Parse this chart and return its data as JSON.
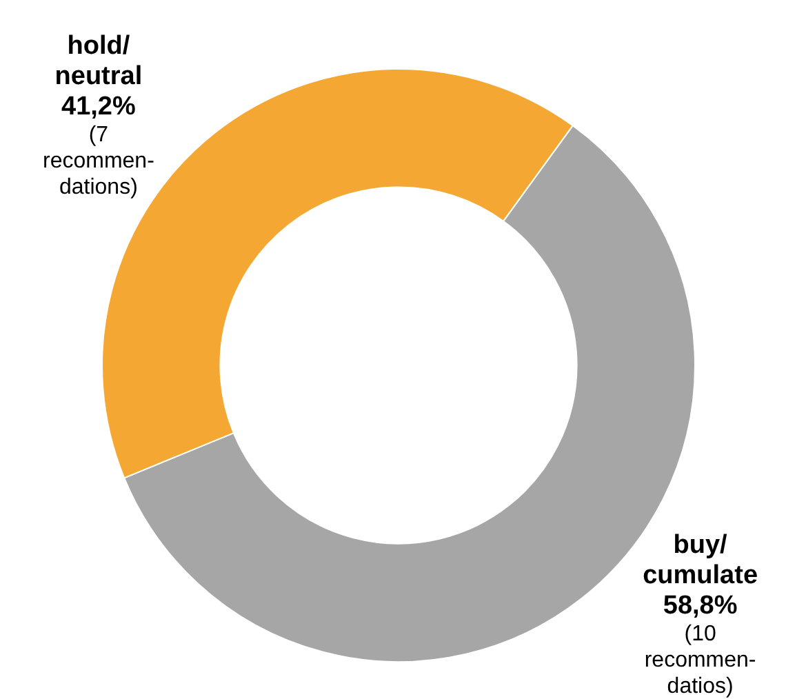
{
  "chart_data": {
    "type": "donut",
    "categories": [
      "buy/ cumulate",
      "hold/ neutral"
    ],
    "values": [
      58.8,
      41.2
    ],
    "colors": [
      "#a6a6a6",
      "#f5a733"
    ],
    "value_labels": [
      "58,8%",
      "41,2%"
    ],
    "annotations": [
      "(10 recommen- datios)",
      "(7 recommen- dations)"
    ],
    "legend": false
  }
}
